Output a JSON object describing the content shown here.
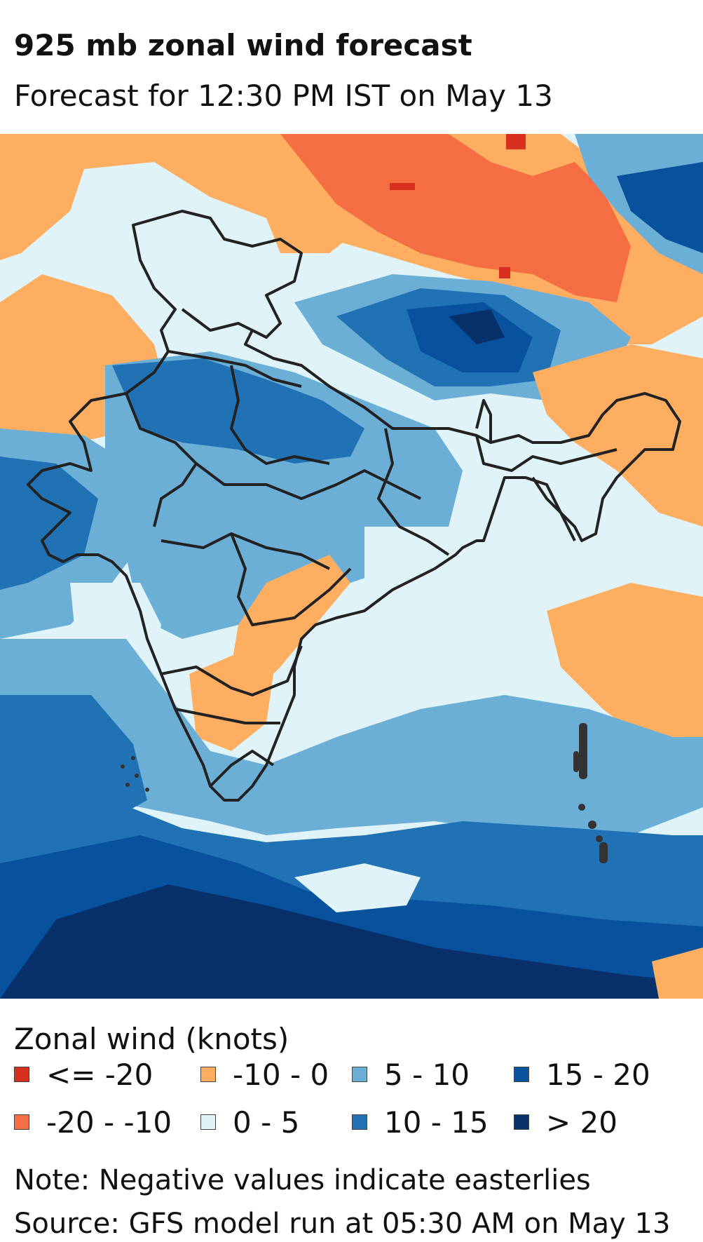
{
  "title": "925 mb zonal wind forecast",
  "subtitle": "Forecast for 12:30 PM IST on May 13",
  "legend": {
    "title": "Zonal wind (knots)",
    "items": [
      {
        "label": "<= -20",
        "color": "#d7301f"
      },
      {
        "label": "-20 - -10",
        "color": "#f46d43"
      },
      {
        "label": "-10 - 0",
        "color": "#fdae61"
      },
      {
        "label": "0 - 5",
        "color": "#e0f3f8"
      },
      {
        "label": "5 - 10",
        "color": "#6baed6"
      },
      {
        "label": "10 - 15",
        "color": "#2171b5"
      },
      {
        "label": "15 - 20",
        "color": "#08519c"
      },
      {
        "label": "> 20",
        "color": "#08306b"
      }
    ]
  },
  "note": "Note: Negative values indicate easterlies",
  "source": "Source: GFS model run at 05:30 AM on May 13",
  "map": {
    "variable": "925 mb zonal wind",
    "units": "knots",
    "overlay": "state-boundaries",
    "outline_color": "#222222"
  }
}
